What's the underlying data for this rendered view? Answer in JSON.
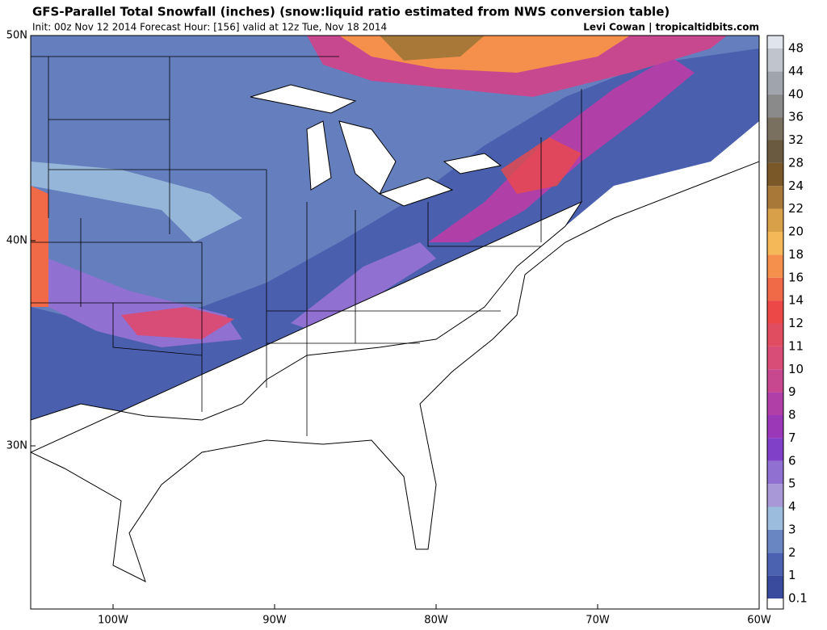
{
  "header": {
    "title": "GFS-Parallel Total Snowfall (inches) (snow:liquid ratio estimated from NWS conversion table)",
    "subtitle": "Init: 00z Nov 12 2014 Forecast Hour: [156] valid at 12z Tue, Nov 18 2014",
    "credit": "Levi Cowan | tropicaltidbits.com"
  },
  "map": {
    "lat_labels": [
      "50N",
      "40N",
      "30N"
    ],
    "lon_labels": [
      "100W",
      "90W",
      "80W",
      "70W",
      "60W"
    ]
  },
  "legend": {
    "levels": [
      0.1,
      1,
      2,
      3,
      4,
      5,
      6,
      7,
      8,
      9,
      10,
      11,
      12,
      14,
      16,
      18,
      20,
      22,
      24,
      28,
      32,
      36,
      40,
      44,
      48
    ],
    "colors": [
      "#3a4a9c",
      "#4a62b0",
      "#6a86c2",
      "#9bbcdc",
      "#a898d8",
      "#9070d0",
      "#8040c8",
      "#9a38b8",
      "#b040a8",
      "#c84890",
      "#d84c78",
      "#e04c60",
      "#ec4848",
      "#f06a48",
      "#f4904c",
      "#f4b858",
      "#d8a048",
      "#a87838",
      "#7a5828",
      "#6a5a40",
      "#7a7060",
      "#8a8a8a",
      "#a0a4ac",
      "#c0c4cc",
      "#e0e4ec"
    ]
  }
}
